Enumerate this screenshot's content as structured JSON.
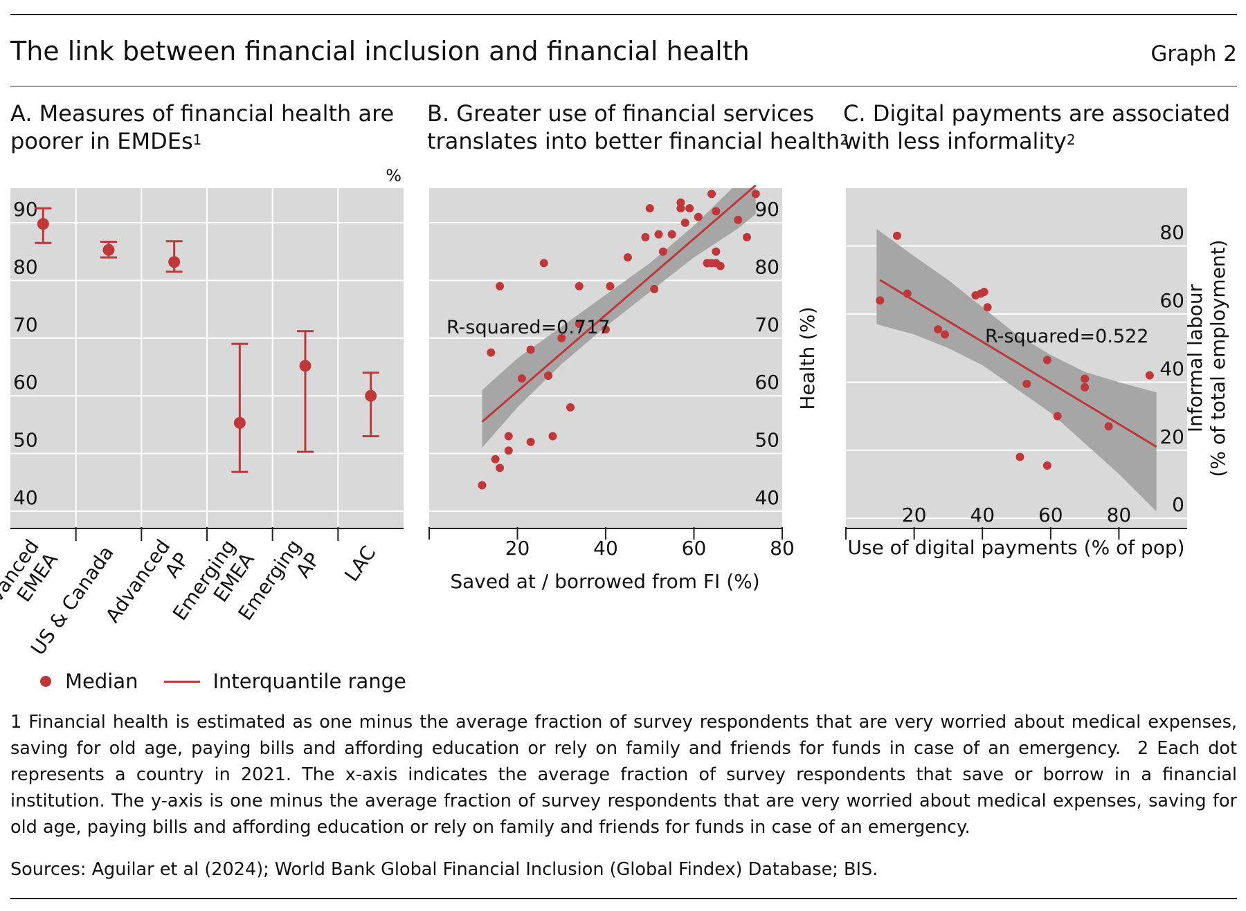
{
  "header": {
    "title": "The link between financial inclusion and financial health",
    "graph_label": "Graph 2"
  },
  "colors": {
    "accent": "#c0373a",
    "panel_bg": "#d9d9d9",
    "band": "#a6a6a6",
    "grid": "#ffffff"
  },
  "chart_data": [
    {
      "id": "A",
      "type": "scatter",
      "title_line1": "A. Measures of financial health are",
      "title_line2": "poorer in EMDEs",
      "title_sup": "1",
      "unit_label": "%",
      "categories": [
        [
          "Advanced",
          "EMEA"
        ],
        [
          "US & Canada"
        ],
        [
          "Advanced",
          "AP"
        ],
        [
          "Emerging",
          "EMEA"
        ],
        [
          "Emerging",
          "AP"
        ],
        [
          "LAC"
        ]
      ],
      "median": [
        89.8,
        85.3,
        83.2,
        55.3,
        65.2,
        60.0
      ],
      "iqr_low": [
        86.5,
        84.0,
        81.5,
        46.8,
        50.3,
        53.0
      ],
      "iqr_high": [
        92.5,
        86.7,
        86.8,
        69.0,
        71.2,
        64.0
      ],
      "ylim": [
        37,
        96
      ],
      "yticks": [
        40,
        50,
        60,
        70,
        80,
        90
      ],
      "legend": {
        "median": "Median",
        "range": "Interquantile range"
      }
    },
    {
      "id": "B",
      "type": "scatter",
      "title_line1": "B. Greater use of financial services",
      "title_line2": "translates into better financial health",
      "title_sup": "2",
      "xlabel": "Saved at / borrowed from FI (%)",
      "ylabel": "Health (%)",
      "xlim": [
        0,
        80
      ],
      "ylim": [
        37,
        96
      ],
      "xticks": [
        20,
        40,
        60,
        80
      ],
      "yticks": [
        40,
        50,
        60,
        70,
        80,
        90
      ],
      "annotation": "R-squared=0.717",
      "x": [
        12,
        15,
        16,
        18,
        18,
        21,
        23,
        23,
        16,
        14,
        26,
        27,
        28,
        27,
        30,
        32,
        34,
        34,
        40,
        41,
        45,
        49,
        50,
        51,
        52,
        53,
        55,
        57,
        57,
        58,
        59,
        61,
        63,
        64,
        64,
        65,
        65,
        66,
        70,
        72,
        74,
        63,
        65
      ],
      "y": [
        44.5,
        49,
        47.5,
        50.5,
        53,
        63,
        68,
        52,
        79,
        67.5,
        83,
        63.5,
        53,
        63.5,
        70,
        58,
        79,
        72.5,
        71.5,
        79,
        84,
        87.5,
        92.5,
        78.5,
        88,
        85,
        88,
        92.5,
        93.5,
        90,
        92.5,
        91,
        83,
        95,
        83,
        85,
        92,
        82.5,
        90.5,
        87.5,
        95,
        83,
        83
      ],
      "fit": {
        "x0": 12,
        "y0": 55.5,
        "x1": 74,
        "y1": 96.5
      },
      "band": {
        "x": [
          12,
          20,
          30,
          40,
          50,
          60,
          70,
          74
        ],
        "lower": [
          51,
          58,
          65.5,
          72,
          78,
          84,
          89,
          91.5
        ],
        "upper": [
          61,
          66.5,
          72,
          77.5,
          83,
          89.5,
          97,
          101.5
        ]
      }
    },
    {
      "id": "C",
      "type": "scatter",
      "title_line1": "C. Digital payments are associated",
      "title_line2": "with less informality",
      "title_sup": "2",
      "xlabel": "Use of digital payments (% of pop)",
      "ylabel_line1": "Informal labour",
      "ylabel_line2": "(% of total employment)",
      "xlim": [
        0,
        100
      ],
      "ylim": [
        -3,
        97
      ],
      "xticks": [
        20,
        40,
        60,
        80
      ],
      "yticks": [
        0,
        20,
        40,
        60,
        80
      ],
      "annotation": "R-squared=0.522",
      "x": [
        10,
        15,
        18,
        27,
        29,
        38,
        39.5,
        40.5,
        41.5,
        53,
        59,
        59,
        62,
        70,
        70,
        77,
        89,
        51
      ],
      "y": [
        64,
        83,
        66,
        55.5,
        54,
        65.5,
        66,
        66.5,
        62,
        39.5,
        46.5,
        15.5,
        30,
        41,
        38.5,
        27,
        42,
        18
      ],
      "fit": {
        "x0": 10,
        "y0": 70,
        "x1": 91,
        "y1": 21
      },
      "band": {
        "x": [
          9,
          20,
          30,
          40,
          50,
          60,
          70,
          80,
          91
        ],
        "lower": [
          57,
          54,
          50,
          45,
          38,
          31,
          22,
          13,
          2
        ],
        "upper": [
          85,
          77,
          70,
          62,
          54,
          48,
          43,
          40,
          37
        ]
      }
    }
  ],
  "footnotes": {
    "note1": "1  Financial health is estimated as one minus the average fraction of survey respondents that are very worried about medical expenses, saving for old age, paying bills and affording education or rely on family and friends for funds in case of an emergency.",
    "note2": "2  Each dot represents a country in 2021. The x-axis indicates the average fraction of survey respondents that save or borrow in a financial institution. The y-axis is one minus the average fraction of survey respondents that are very worried about medical expenses, saving for old age, paying bills and affording education or rely on family and friends for funds in case of an emergency."
  },
  "sources": "Sources: Aguilar et al (2024); World Bank Global Financial Inclusion (Global Findex) Database; BIS."
}
